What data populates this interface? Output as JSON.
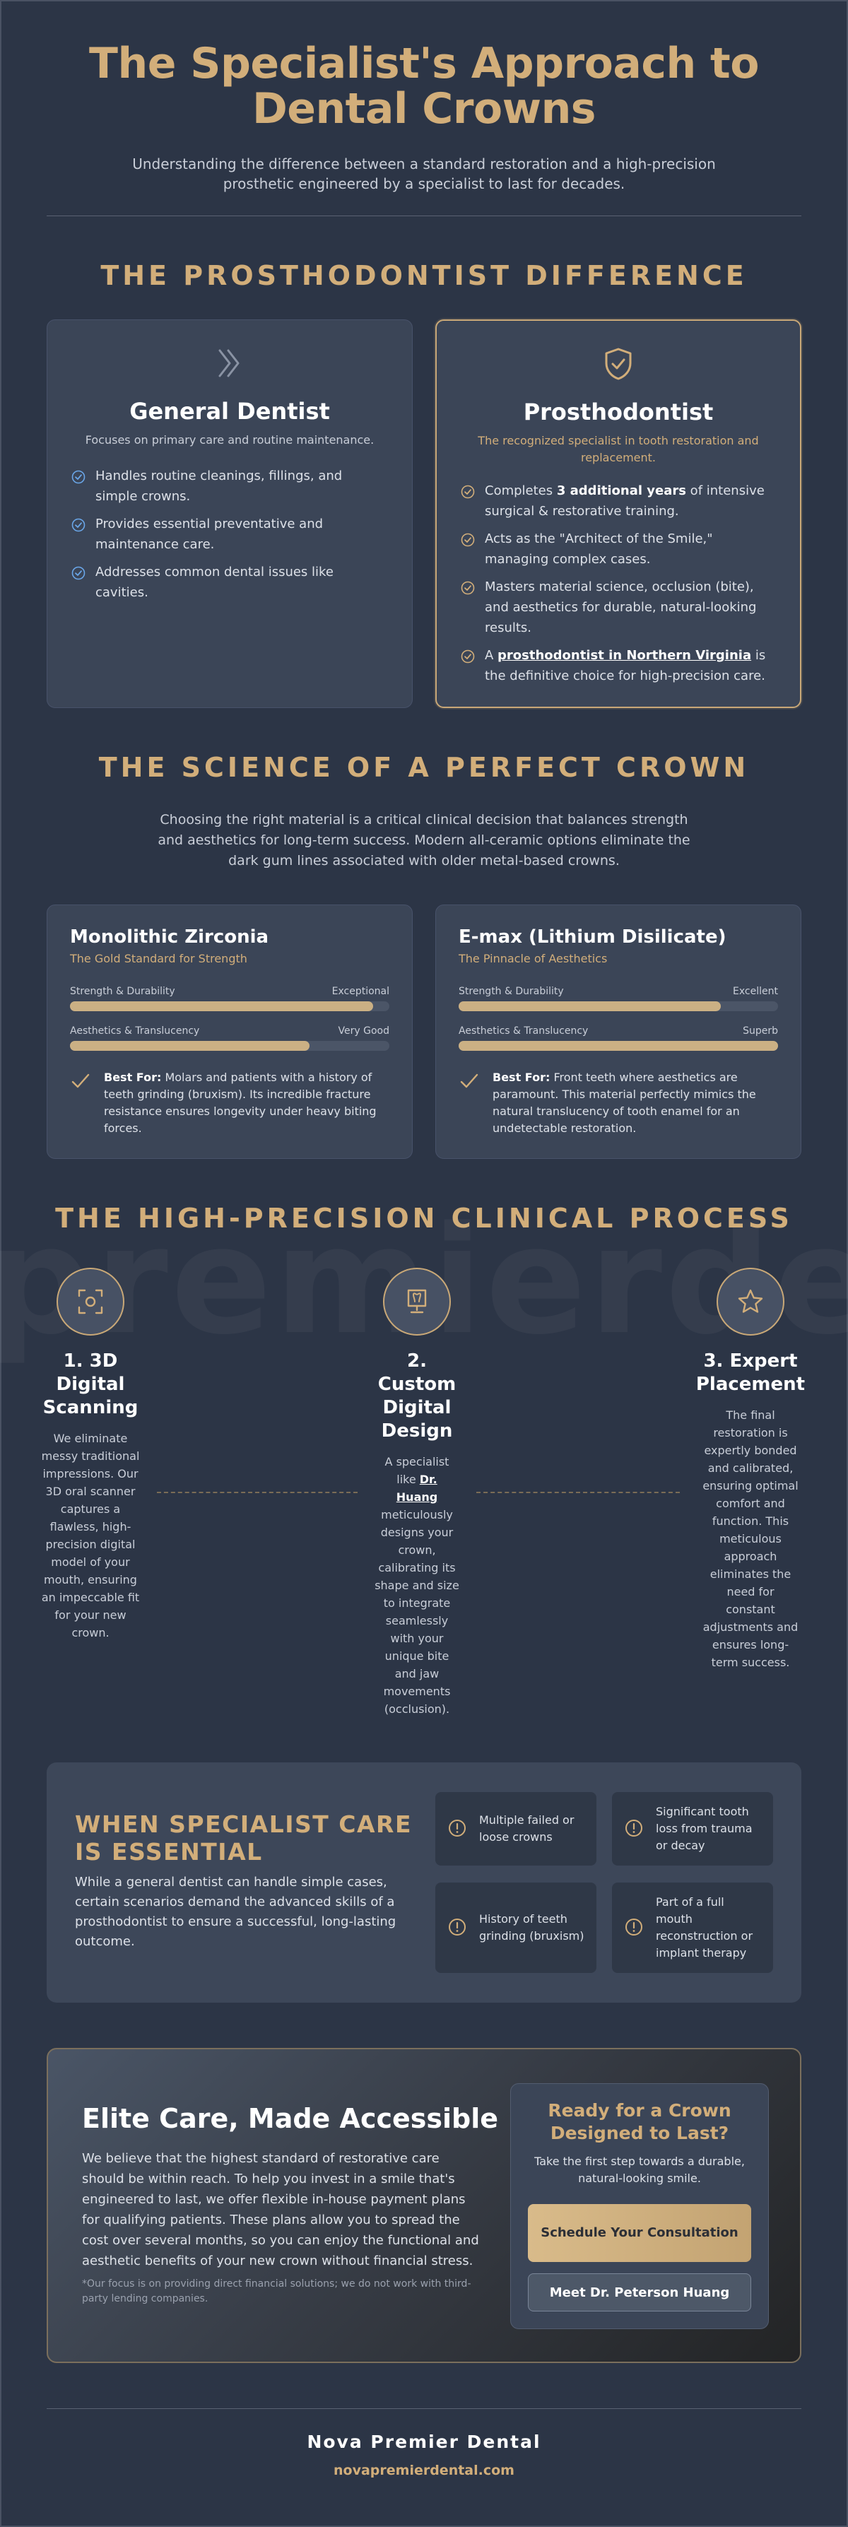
{
  "hero": {
    "title": "The Specialist's Approach to Dental Crowns",
    "subtitle": "Understanding the difference between a standard restoration and a high-precision prosthetic engineered by a specialist to last for decades."
  },
  "difference": {
    "heading": "THE PROSTHODONTIST DIFFERENCE",
    "general": {
      "icon": "chevrons-right-icon",
      "title": "General Dentist",
      "subtitle": "Focuses on primary care and routine maintenance.",
      "points": [
        "Handles routine cleanings, fillings, and simple crowns.",
        "Provides essential preventative and maintenance care.",
        "Addresses common dental issues like cavities."
      ]
    },
    "prosthodontist": {
      "icon": "shield-check-icon",
      "title": "Prosthodontist",
      "subtitle": "The recognized specialist in tooth restoration and replacement.",
      "p1_pre": "Completes ",
      "p1_bold": "3 additional years",
      "p1_post": " of intensive surgical & restorative training.",
      "p2": "Acts as the \"Architect of the Smile,\" managing complex cases.",
      "p3": "Masters material science, occlusion (bite), and aesthetics for durable, natural-looking results.",
      "p4_pre": "A ",
      "p4_link": "prosthodontist in Northern Virginia",
      "p4_post": " is the definitive choice for high-precision care."
    }
  },
  "science": {
    "heading": "THE SCIENCE OF A PERFECT CROWN",
    "intro": "Choosing the right material is a critical clinical decision that balances strength and aesthetics for long-term success. Modern all-ceramic options eliminate the dark gum lines associated with older metal-based crowns.",
    "materials": [
      {
        "name": "Monolithic Zirconia",
        "tagline": "The Gold Standard for Strength",
        "metrics": [
          {
            "label": "Strength & Durability",
            "rating": "Exceptional",
            "level": 0.95
          },
          {
            "label": "Aesthetics & Translucency",
            "rating": "Very Good",
            "level": 0.75
          }
        ],
        "best_label": "Best For:",
        "best_text": " Molars and patients with a history of teeth grinding (bruxism). Its incredible fracture resistance ensures longevity under heavy biting forces."
      },
      {
        "name": "E-max (Lithium Disilicate)",
        "tagline": "The Pinnacle of Aesthetics",
        "metrics": [
          {
            "label": "Strength & Durability",
            "rating": "Excellent",
            "level": 0.82
          },
          {
            "label": "Aesthetics & Translucency",
            "rating": "Superb",
            "level": 1.0
          }
        ],
        "best_label": "Best For:",
        "best_text": " Front teeth where aesthetics are paramount. This material perfectly mimics the natural translucency of tooth enamel for an undetectable restoration."
      }
    ]
  },
  "process": {
    "heading": "THE HIGH-PRECISION CLINICAL PROCESS",
    "watermark": "premierdent",
    "steps": [
      {
        "icon": "scan-icon",
        "title": "1. 3D Digital Scanning",
        "text": "We eliminate messy traditional impressions. Our 3D oral scanner captures a flawless, high-precision digital model of your mouth, ensuring an impeccable fit for your new crown."
      },
      {
        "icon": "design-monitor-icon",
        "title": "2. Custom Digital Design",
        "text_pre": "A specialist like ",
        "text_link": "Dr. Huang",
        "text_post": " meticulously designs your crown, calibrating its shape and size to integrate seamlessly with your unique bite and jaw movements (occlusion)."
      },
      {
        "icon": "star-icon",
        "title": "3. Expert Placement",
        "text": "The final restoration is expertly bonded and calibrated, ensuring optimal comfort and function. This meticulous approach eliminates the need for constant adjustments and ensures long-term success."
      }
    ]
  },
  "essential": {
    "heading": "WHEN SPECIALIST CARE IS ESSENTIAL",
    "text": "While a general dentist can handle simple cases, certain scenarios demand the advanced skills of a prosthodontist to ensure a successful, long-lasting outcome.",
    "items": [
      "Multiple failed or loose crowns",
      "Significant tooth loss from trauma or decay",
      "History of teeth grinding (bruxism)",
      "Part of a full mouth reconstruction or implant therapy"
    ]
  },
  "elite": {
    "heading": "Elite Care, Made Accessible",
    "text": "We believe that the highest standard of restorative care should be within reach. To help you invest in a smile that's engineered to last, we offer flexible in-house payment plans for qualifying patients. These plans allow you to spread the cost over several months, so you can enjoy the functional and aesthetic benefits of your new crown without financial stress.",
    "note": "*Our focus is on providing direct financial solutions; we do not work with third-party lending companies.",
    "cta": {
      "heading": "Ready for a Crown Designed to Last?",
      "subtitle": "Take the first step towards a durable, natural-looking smile.",
      "primary": "Schedule Your Consultation",
      "secondary": "Meet Dr. Peterson Huang"
    }
  },
  "footer": {
    "name": "Nova Premier Dental",
    "url": "novapremierdental.com"
  },
  "colors": {
    "background": "#2c3546",
    "card": "#3b4557",
    "gold": "#d2ae7a",
    "check_blue": "#6aa6e8"
  }
}
